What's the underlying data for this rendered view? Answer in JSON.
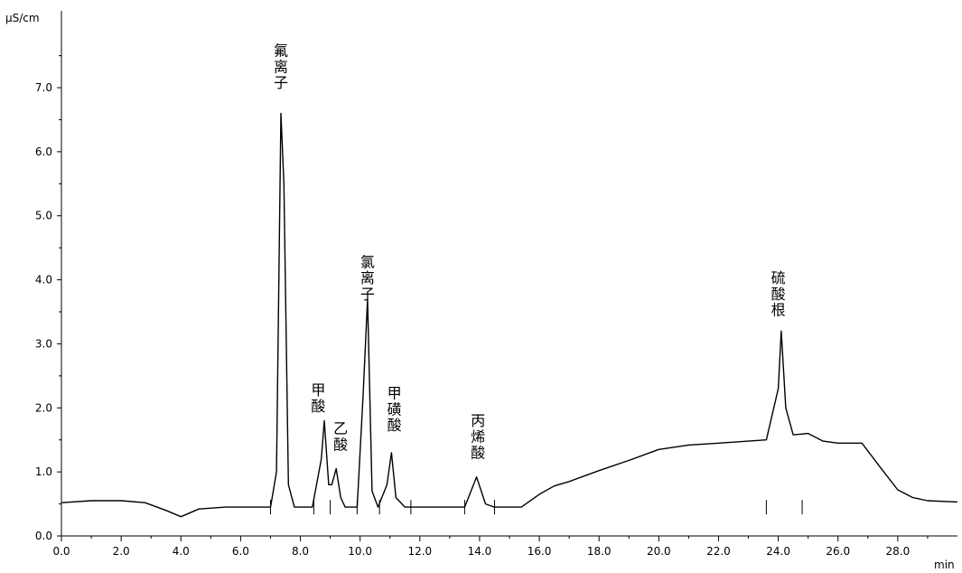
{
  "chart_data": {
    "type": "line",
    "title": "",
    "xlabel": "min",
    "ylabel": "µS/cm",
    "xlim": [
      0,
      30
    ],
    "ylim": [
      0,
      8.2
    ],
    "x_ticks": [
      "0.0",
      "2.0",
      "4.0",
      "6.0",
      "8.0",
      "10.0",
      "12.0",
      "14.0",
      "16.0",
      "18.0",
      "20.0",
      "22.0",
      "24.0",
      "26.0",
      "28.0"
    ],
    "y_ticks": [
      "0.0",
      "1.0",
      "2.0",
      "3.0",
      "4.0",
      "5.0",
      "6.0",
      "7.0"
    ],
    "grid": false,
    "series": [
      {
        "name": "",
        "color": "#000000",
        "x": [
          0,
          1.0,
          2.0,
          2.8,
          3.5,
          4.0,
          4.6,
          5.5,
          6.0,
          7.0,
          7.2,
          7.35,
          7.45,
          7.6,
          7.8,
          8.0,
          8.4,
          8.7,
          8.8,
          8.95,
          9.05,
          9.2,
          9.35,
          9.5,
          9.9,
          10.1,
          10.25,
          10.4,
          10.6,
          10.9,
          11.05,
          11.2,
          11.5,
          12.5,
          13.5,
          13.9,
          14.2,
          14.5,
          15.4,
          16.0,
          16.5,
          17.0,
          18.0,
          19.0,
          20.0,
          21.0,
          22.0,
          23.0,
          23.6,
          24.0,
          24.1,
          24.25,
          24.5,
          25.0,
          25.5,
          26.0,
          26.8,
          27.5,
          28.0,
          28.5,
          29.0,
          30.0
        ],
        "y": [
          0.52,
          0.55,
          0.55,
          0.52,
          0.4,
          0.3,
          0.42,
          0.45,
          0.45,
          0.45,
          1.0,
          6.6,
          5.5,
          0.8,
          0.45,
          0.45,
          0.45,
          1.2,
          1.8,
          0.8,
          0.8,
          1.05,
          0.6,
          0.45,
          0.45,
          2.2,
          3.7,
          0.7,
          0.45,
          0.8,
          1.3,
          0.6,
          0.45,
          0.45,
          0.45,
          0.92,
          0.5,
          0.45,
          0.45,
          0.65,
          0.78,
          0.85,
          1.02,
          1.18,
          1.35,
          1.42,
          1.45,
          1.48,
          1.5,
          2.3,
          3.2,
          2.0,
          1.58,
          1.6,
          1.48,
          1.45,
          1.45,
          1.02,
          0.72,
          0.6,
          0.55,
          0.53
        ]
      }
    ],
    "annotations": [
      {
        "text": "氟",
        "x": 7.35,
        "y": 7.5
      },
      {
        "text": "离",
        "x": 7.35,
        "y": 7.25
      },
      {
        "text": "子",
        "x": 7.35,
        "y": 7.0
      },
      {
        "text": "甲",
        "x": 8.6,
        "y": 2.2
      },
      {
        "text": "酸",
        "x": 8.6,
        "y": 1.95
      },
      {
        "text": "乙",
        "x": 9.35,
        "y": 1.6
      },
      {
        "text": "酸",
        "x": 9.35,
        "y": 1.35
      },
      {
        "text": "氯",
        "x": 10.25,
        "y": 4.2
      },
      {
        "text": "离",
        "x": 10.25,
        "y": 3.95
      },
      {
        "text": "子",
        "x": 10.25,
        "y": 3.7
      },
      {
        "text": "甲",
        "x": 11.15,
        "y": 2.15
      },
      {
        "text": "磺",
        "x": 11.15,
        "y": 1.9
      },
      {
        "text": "酸",
        "x": 11.15,
        "y": 1.65
      },
      {
        "text": "丙",
        "x": 13.95,
        "y": 1.72
      },
      {
        "text": "烯",
        "x": 13.95,
        "y": 1.47
      },
      {
        "text": "酸",
        "x": 13.95,
        "y": 1.22
      },
      {
        "text": "硫",
        "x": 24.0,
        "y": 3.95
      },
      {
        "text": "酸",
        "x": 24.0,
        "y": 3.7
      },
      {
        "text": "根",
        "x": 24.0,
        "y": 3.45
      }
    ],
    "integration_markers": [
      7.0,
      8.45,
      9.0,
      9.9,
      10.65,
      11.7,
      13.5,
      14.5,
      23.6,
      24.8
    ]
  }
}
